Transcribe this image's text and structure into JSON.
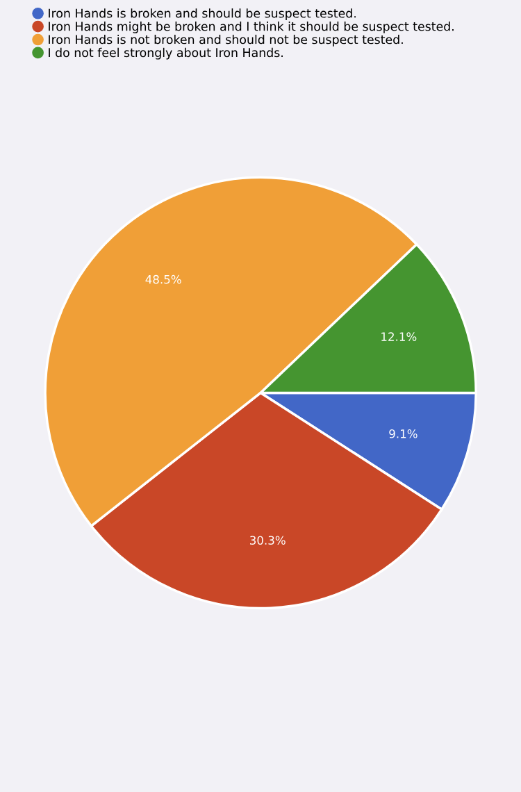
{
  "chart_data": {
    "type": "pie",
    "categories": [
      "Iron Hands is broken and should be suspect tested.",
      "Iron Hands might be broken and I think it should be suspect tested.",
      "Iron Hands is not broken and should not be suspect tested.",
      "I do not feel strongly about Iron Hands."
    ],
    "values": [
      9.1,
      30.3,
      48.5,
      12.1
    ],
    "colors": [
      "#4267c7",
      "#c94727",
      "#f09f37",
      "#459530"
    ],
    "value_labels": [
      "9.1%",
      "30.3%",
      "48.5%",
      "12.1%"
    ],
    "legend": "top left"
  }
}
